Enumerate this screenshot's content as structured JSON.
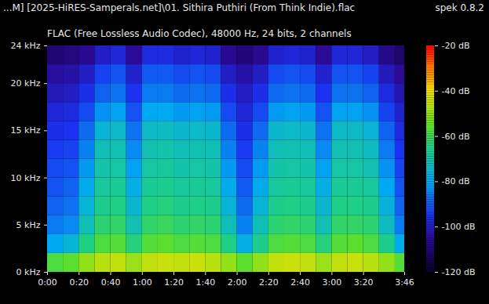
{
  "chart_data": {
    "type": "heatmap",
    "title": "...M] [2025-HiRES-Samperals.net]\\01. Sithira Puthiri (From Think Indie).flac",
    "subtitle": "FLAC (Free Lossless Audio Codec), 48000 Hz, 24 bits, 2 channels",
    "annotations": [
      "spek 0.8.2"
    ],
    "xlim": [
      0,
      226
    ],
    "xticks": [
      {
        "value": 0,
        "label": "0:00"
      },
      {
        "value": 20,
        "label": "0:20"
      },
      {
        "value": 40,
        "label": "0:40"
      },
      {
        "value": 60,
        "label": "1:00"
      },
      {
        "value": 80,
        "label": "1:20"
      },
      {
        "value": 100,
        "label": "1:40"
      },
      {
        "value": 120,
        "label": "2:00"
      },
      {
        "value": 140,
        "label": "2:20"
      },
      {
        "value": 160,
        "label": "2:40"
      },
      {
        "value": 180,
        "label": "3:00"
      },
      {
        "value": 200,
        "label": "3:20"
      },
      {
        "value": 226,
        "label": "3:46"
      }
    ],
    "ylim": [
      0,
      24
    ],
    "yticks": [
      {
        "value": 0,
        "label": "0 kHz"
      },
      {
        "value": 5,
        "label": "5 kHz"
      },
      {
        "value": 10,
        "label": "10 kHz"
      },
      {
        "value": 15,
        "label": "15 kHz"
      },
      {
        "value": 20,
        "label": "20 kHz"
      },
      {
        "value": 24,
        "label": "24 kHz"
      }
    ],
    "x_edges": [
      0,
      10,
      20,
      30,
      40,
      50,
      60,
      70,
      80,
      90,
      100,
      110,
      120,
      130,
      140,
      150,
      160,
      170,
      180,
      190,
      200,
      210,
      220,
      226
    ],
    "y_edges": [
      0,
      2,
      4,
      6,
      8,
      10,
      12,
      14,
      16,
      18,
      20,
      22,
      24
    ],
    "cells": [
      [
        -58,
        -56,
        -50,
        -46,
        -45,
        -49,
        -45,
        -44,
        -45,
        -44,
        -46,
        -50,
        -56,
        -50,
        -45,
        -44,
        -45,
        -49,
        -45,
        -44,
        -46,
        -50,
        -57
      ],
      [
        -80,
        -76,
        -65,
        -58,
        -57,
        -64,
        -57,
        -56,
        -58,
        -57,
        -58,
        -65,
        -78,
        -66,
        -58,
        -57,
        -58,
        -64,
        -57,
        -56,
        -58,
        -66,
        -79
      ],
      [
        -86,
        -84,
        -72,
        -63,
        -62,
        -71,
        -62,
        -61,
        -63,
        -62,
        -63,
        -72,
        -85,
        -72,
        -63,
        -62,
        -63,
        -71,
        -62,
        -62,
        -63,
        -73,
        -86
      ],
      [
        -89,
        -87,
        -76,
        -66,
        -65,
        -75,
        -65,
        -64,
        -66,
        -65,
        -66,
        -76,
        -88,
        -76,
        -66,
        -65,
        -66,
        -75,
        -65,
        -65,
        -66,
        -77,
        -89
      ],
      [
        -91,
        -89,
        -79,
        -68,
        -67,
        -78,
        -67,
        -66,
        -68,
        -67,
        -68,
        -79,
        -90,
        -79,
        -68,
        -67,
        -68,
        -78,
        -67,
        -67,
        -68,
        -80,
        -91
      ],
      [
        -92,
        -91,
        -82,
        -70,
        -69,
        -81,
        -69,
        -68,
        -70,
        -69,
        -70,
        -82,
        -92,
        -82,
        -70,
        -69,
        -70,
        -81,
        -69,
        -69,
        -71,
        -83,
        -93
      ],
      [
        -94,
        -93,
        -85,
        -72,
        -71,
        -84,
        -71,
        -70,
        -72,
        -71,
        -72,
        -85,
        -94,
        -85,
        -72,
        -71,
        -72,
        -84,
        -71,
        -71,
        -73,
        -86,
        -95
      ],
      [
        -96,
        -95,
        -88,
        -76,
        -74,
        -87,
        -74,
        -73,
        -75,
        -74,
        -75,
        -88,
        -96,
        -88,
        -75,
        -74,
        -75,
        -87,
        -74,
        -74,
        -76,
        -89,
        -97
      ],
      [
        -98,
        -97,
        -92,
        -83,
        -81,
        -91,
        -80,
        -80,
        -82,
        -81,
        -82,
        -92,
        -98,
        -92,
        -82,
        -81,
        -82,
        -91,
        -81,
        -81,
        -83,
        -93,
        -99
      ],
      [
        -101,
        -100,
        -96,
        -89,
        -87,
        -95,
        -86,
        -86,
        -88,
        -87,
        -88,
        -96,
        -100,
        -96,
        -88,
        -87,
        -88,
        -95,
        -87,
        -87,
        -89,
        -97,
        -102
      ],
      [
        -104,
        -103,
        -100,
        -93,
        -91,
        -99,
        -90,
        -90,
        -92,
        -91,
        -92,
        -100,
        -103,
        -100,
        -92,
        -91,
        -92,
        -99,
        -91,
        -91,
        -93,
        -101,
        -105
      ],
      [
        -110,
        -108,
        -106,
        -100,
        -98,
        -105,
        -97,
        -97,
        -99,
        -98,
        -99,
        -106,
        -109,
        -106,
        -99,
        -98,
        -99,
        -105,
        -98,
        -98,
        -100,
        -107,
        -111
      ]
    ],
    "colorbar": {
      "range": [
        -120,
        -20
      ],
      "ticks": [
        {
          "value": -20,
          "label": "-20 dB"
        },
        {
          "value": -40,
          "label": "-40 dB"
        },
        {
          "value": -60,
          "label": "-60 dB"
        },
        {
          "value": -80,
          "label": "-80 dB"
        },
        {
          "value": -100,
          "label": "-100 dB"
        },
        {
          "value": -120,
          "label": "-120 dB"
        }
      ]
    }
  }
}
